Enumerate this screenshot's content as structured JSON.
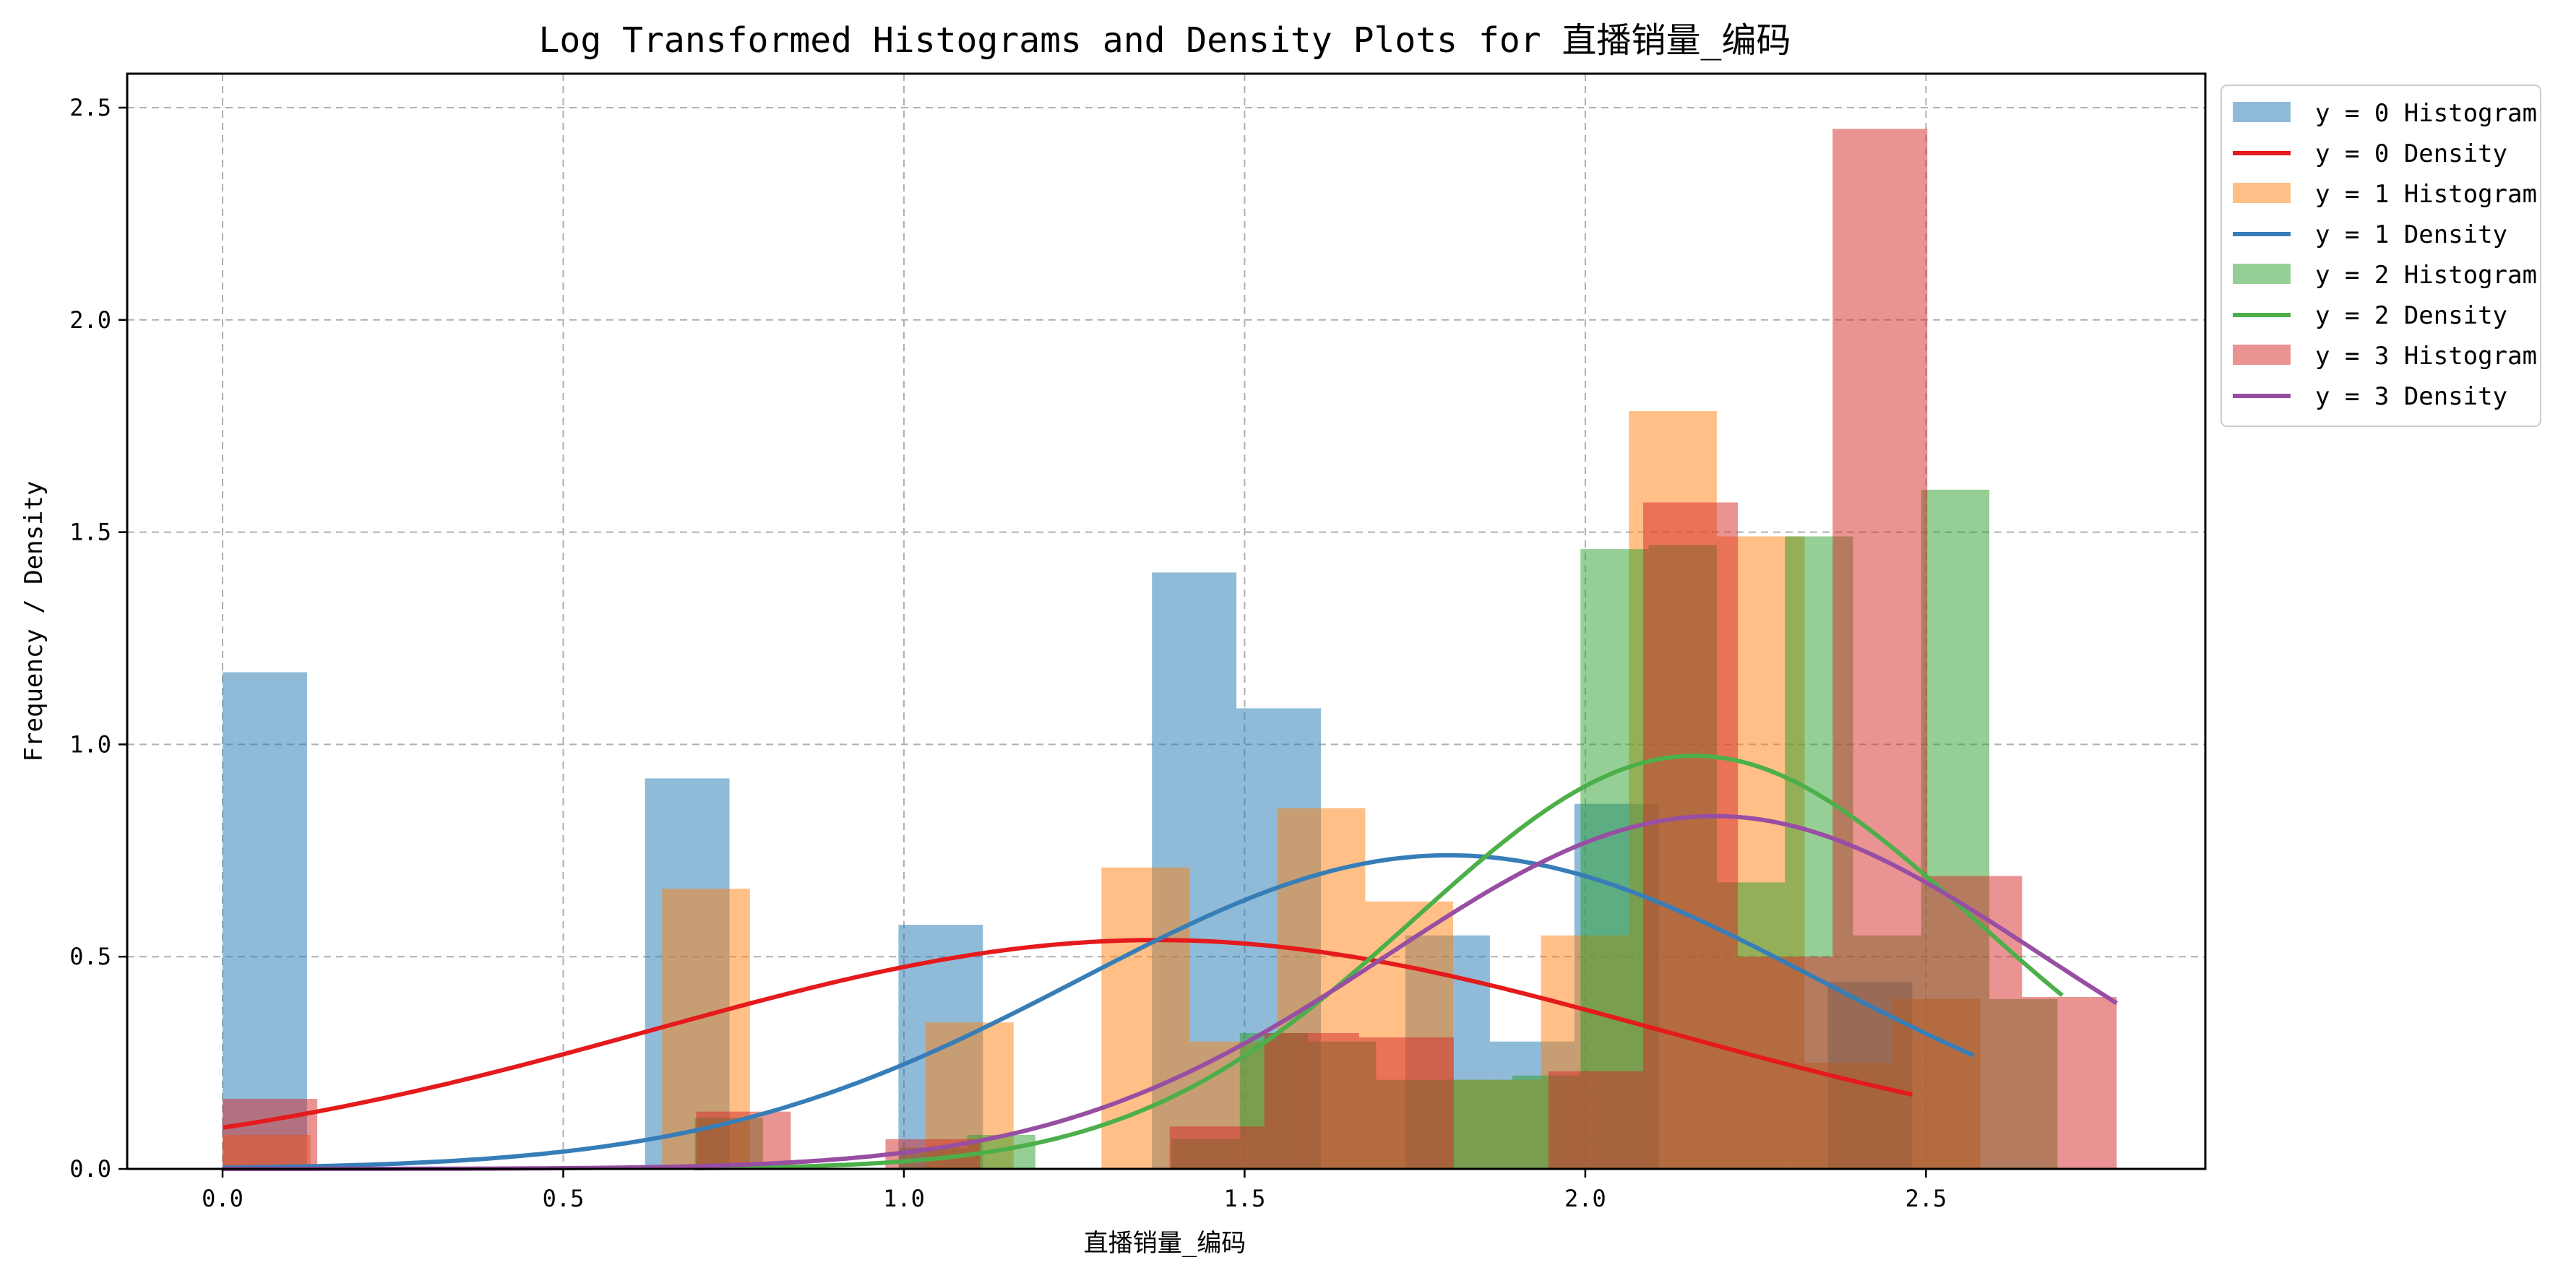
{
  "chart_data": {
    "type": "histogram+density",
    "title": "Log Transformed Histograms and Density Plots for 直播销量_编码",
    "xlabel": "直播销量_编码",
    "ylabel": "Frequency / Density",
    "xlim": [
      -0.14,
      2.91
    ],
    "ylim": [
      0,
      2.58
    ],
    "x_ticks": [
      0.0,
      0.5,
      1.0,
      1.5,
      2.0,
      2.5
    ],
    "x_tick_labels": [
      "0.0",
      "0.5",
      "1.0",
      "1.5",
      "2.0",
      "2.5"
    ],
    "y_ticks": [
      0.0,
      0.5,
      1.0,
      1.5,
      2.0,
      2.5
    ],
    "y_tick_labels": [
      "0.0",
      "0.5",
      "1.0",
      "1.5",
      "2.0",
      "2.5"
    ],
    "grid": true,
    "legend_position": "outside-top-right",
    "series": [
      {
        "name": "y = 0 Histogram",
        "kind": "histogram",
        "color": "#1f77b4",
        "opacity": 0.5,
        "bins": [
          [
            0.0,
            0.124,
            1.17
          ],
          [
            0.124,
            0.248,
            0
          ],
          [
            0.248,
            0.372,
            0
          ],
          [
            0.372,
            0.496,
            0
          ],
          [
            0.496,
            0.62,
            0
          ],
          [
            0.62,
            0.744,
            0.92
          ],
          [
            0.744,
            0.868,
            0
          ],
          [
            0.868,
            0.992,
            0
          ],
          [
            0.992,
            1.116,
            0.575
          ],
          [
            1.116,
            1.24,
            0
          ],
          [
            1.24,
            1.364,
            0
          ],
          [
            1.364,
            1.488,
            1.405
          ],
          [
            1.488,
            1.612,
            1.085
          ],
          [
            1.612,
            1.736,
            0
          ],
          [
            1.736,
            1.86,
            0.55
          ],
          [
            1.86,
            1.984,
            0.3
          ],
          [
            1.984,
            2.108,
            0.86
          ],
          [
            2.108,
            2.232,
            0
          ],
          [
            2.232,
            2.356,
            0
          ],
          [
            2.356,
            2.48,
            0.44
          ]
        ]
      },
      {
        "name": "y = 0 Density",
        "kind": "density",
        "color": "#e41a1c",
        "mean": 1.37,
        "sd": 0.74,
        "x_range": [
          0.0,
          2.48
        ]
      },
      {
        "name": "y = 1 Histogram",
        "kind": "histogram",
        "color": "#ff7f0e",
        "opacity": 0.5,
        "bins": [
          [
            0.0,
            0.129,
            0.08
          ],
          [
            0.129,
            0.258,
            0
          ],
          [
            0.258,
            0.387,
            0
          ],
          [
            0.387,
            0.516,
            0
          ],
          [
            0.516,
            0.645,
            0
          ],
          [
            0.645,
            0.774,
            0.66
          ],
          [
            0.774,
            0.903,
            0
          ],
          [
            0.903,
            1.032,
            0
          ],
          [
            1.032,
            1.161,
            0.345
          ],
          [
            1.161,
            1.29,
            0
          ],
          [
            1.29,
            1.419,
            0.71
          ],
          [
            1.419,
            1.548,
            0.3
          ],
          [
            1.548,
            1.677,
            0.85
          ],
          [
            1.677,
            1.806,
            0.63
          ],
          [
            1.806,
            1.935,
            0.21
          ],
          [
            1.935,
            2.064,
            0.55
          ],
          [
            2.064,
            2.193,
            1.785
          ],
          [
            2.193,
            2.322,
            1.49
          ],
          [
            2.322,
            2.451,
            0.25
          ],
          [
            2.451,
            2.58,
            0.4
          ]
        ]
      },
      {
        "name": "y = 1 Density",
        "kind": "density",
        "color": "#377eb8",
        "mean": 1.8,
        "sd": 0.54,
        "x_range": [
          0.0,
          2.57
        ]
      },
      {
        "name": "y = 2 Histogram",
        "kind": "histogram",
        "color": "#2ca02c",
        "opacity": 0.5,
        "bins": [
          [
            0.693,
            0.793,
            0.12
          ],
          [
            0.793,
            0.893,
            0
          ],
          [
            0.893,
            0.993,
            0
          ],
          [
            0.993,
            1.093,
            0.05
          ],
          [
            1.093,
            1.193,
            0.08
          ],
          [
            1.193,
            1.293,
            0
          ],
          [
            1.293,
            1.393,
            0
          ],
          [
            1.393,
            1.493,
            0.07
          ],
          [
            1.493,
            1.593,
            0.32
          ],
          [
            1.593,
            1.693,
            0.3
          ],
          [
            1.693,
            1.793,
            0.21
          ],
          [
            1.793,
            1.893,
            0.21
          ],
          [
            1.893,
            1.993,
            0.22
          ],
          [
            1.993,
            2.093,
            1.46
          ],
          [
            2.093,
            2.193,
            1.47
          ],
          [
            2.193,
            2.293,
            0.675
          ],
          [
            2.293,
            2.393,
            1.49
          ],
          [
            2.393,
            2.493,
            0.55
          ],
          [
            2.493,
            2.593,
            1.6
          ],
          [
            2.593,
            2.693,
            0.4
          ]
        ]
      },
      {
        "name": "y = 2 Density",
        "kind": "density",
        "color": "#4daf4a",
        "mean": 2.16,
        "sd": 0.41,
        "x_range": [
          0.693,
          2.7
        ]
      },
      {
        "name": "y = 3 Histogram",
        "kind": "histogram",
        "color": "#d62728",
        "opacity": 0.5,
        "bins": [
          [
            0.0,
            0.139,
            0.165
          ],
          [
            0.139,
            0.278,
            0
          ],
          [
            0.278,
            0.417,
            0
          ],
          [
            0.417,
            0.556,
            0
          ],
          [
            0.556,
            0.695,
            0
          ],
          [
            0.695,
            0.834,
            0.135
          ],
          [
            0.834,
            0.973,
            0
          ],
          [
            0.973,
            1.112,
            0.07
          ],
          [
            1.112,
            1.251,
            0
          ],
          [
            1.251,
            1.39,
            0
          ],
          [
            1.39,
            1.529,
            0.1
          ],
          [
            1.529,
            1.668,
            0.32
          ],
          [
            1.668,
            1.807,
            0.31
          ],
          [
            1.807,
            1.946,
            0
          ],
          [
            1.946,
            2.085,
            0.23
          ],
          [
            2.085,
            2.224,
            1.57
          ],
          [
            2.224,
            2.363,
            0.5
          ],
          [
            2.363,
            2.502,
            2.45
          ],
          [
            2.502,
            2.641,
            0.69
          ],
          [
            2.641,
            2.78,
            0.405
          ]
        ]
      },
      {
        "name": "y = 3 Density",
        "kind": "density",
        "color": "#984ea3",
        "mean": 2.19,
        "sd": 0.48,
        "x_range": [
          0.0,
          2.78
        ]
      }
    ]
  }
}
